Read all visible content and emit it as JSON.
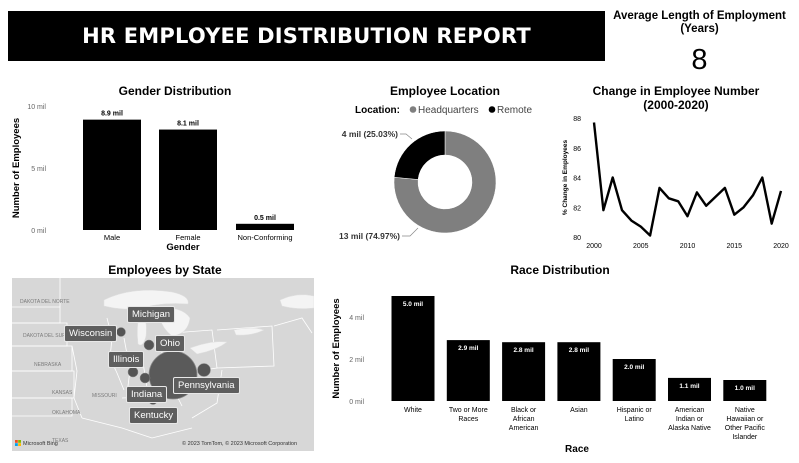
{
  "header": {
    "title": "HR EMPLOYEE DISTRIBUTION REPORT"
  },
  "kpi": {
    "label": "Average Length of Employment\n(Years)",
    "value": "8"
  },
  "colors": {
    "bar": "#000000",
    "donut_hq": "#7f7f7f",
    "donut_remote": "#000000",
    "line": "#000000",
    "bubble": "#555555",
    "map_bg": "#d7d7d7"
  },
  "panels": {
    "gender": "Gender Distribution",
    "location": "Employee Location",
    "trend": "Change in Employee Number\n(2000-2020)",
    "state": "Employees by State",
    "race": "Race Distribution"
  },
  "chart_data": [
    {
      "id": "gender",
      "type": "bar",
      "title": "Gender Distribution",
      "xlabel": "Gender",
      "ylabel": "Number of Employees",
      "categories": [
        "Male",
        "Female",
        "Non-Conforming"
      ],
      "values": [
        8.9,
        8.1,
        0.5
      ],
      "data_labels": [
        "8.9 mil",
        "8.1 mil",
        "0.5 mil"
      ],
      "ylim": [
        0,
        10
      ],
      "yticks": [
        0,
        5,
        10
      ],
      "ytick_labels": [
        "0 mil",
        "5 mil",
        "10 mil"
      ]
    },
    {
      "id": "location",
      "type": "pie",
      "title": "Employee Location",
      "legend_title": "Location:",
      "labels": [
        "Headquarters",
        "Remote"
      ],
      "values": [
        13,
        4
      ],
      "percents": [
        74.97,
        25.03
      ],
      "data_labels": [
        "13 mil (74.97%)",
        "4 mil (25.03%)"
      ],
      "donut": true
    },
    {
      "id": "trend",
      "type": "line",
      "title": "Change in Employee Number (2000-2020)",
      "ylabel": "% Change in Employees",
      "x": [
        2000,
        2001,
        2002,
        2003,
        2004,
        2005,
        2006,
        2007,
        2008,
        2009,
        2010,
        2011,
        2012,
        2013,
        2014,
        2015,
        2016,
        2017,
        2018,
        2019,
        2020
      ],
      "y": [
        87.7,
        81.8,
        84.0,
        81.8,
        81.1,
        80.7,
        80.1,
        83.3,
        82.6,
        82.4,
        81.4,
        83.0,
        82.1,
        82.7,
        83.3,
        81.5,
        82.0,
        82.8,
        84.0,
        80.9,
        83.1
      ],
      "xlim": [
        2000,
        2020
      ],
      "ylim": [
        80,
        88
      ],
      "xticks": [
        2000,
        2005,
        2010,
        2015,
        2020
      ],
      "yticks": [
        80,
        82,
        84,
        86,
        88
      ]
    },
    {
      "id": "race",
      "type": "bar",
      "title": "Race Distribution",
      "xlabel": "Race",
      "ylabel": "Number of Employees",
      "categories": [
        "White",
        "Two or More Races",
        "Black or African American",
        "Asian",
        "Hispanic or Latino",
        "American Indian or Alaska Native",
        "Native Hawaiian or Other Pacific Islander"
      ],
      "category_lines": [
        [
          "White"
        ],
        [
          "Two or More",
          "Races"
        ],
        [
          "Black or",
          "African",
          "American"
        ],
        [
          "Asian"
        ],
        [
          "Hispanic or",
          "Latino"
        ],
        [
          "American",
          "Indian or",
          "Alaska Native"
        ],
        [
          "Native",
          "Hawaiian or",
          "Other Pacific",
          "Islander"
        ]
      ],
      "values": [
        5.0,
        2.9,
        2.8,
        2.8,
        2.0,
        1.1,
        1.0
      ],
      "data_labels": [
        "5.0 mil",
        "2.9 mil",
        "2.8 mil",
        "2.8 mil",
        "2.0 mil",
        "1.1 mil",
        "1.0 mil"
      ],
      "ylim": [
        0,
        5
      ],
      "yticks": [
        0,
        2,
        4
      ],
      "ytick_labels": [
        "0 mil",
        "2 mil",
        "4 mil"
      ]
    }
  ],
  "map": {
    "title": "Employees by State",
    "states": [
      "Michigan",
      "Wisconsin",
      "Ohio",
      "Illinois",
      "Pennsylvania",
      "Indiana",
      "Kentucky"
    ],
    "bubble_sizes": {
      "Ohio": "large",
      "Pennsylvania": "medium",
      "Michigan": "small",
      "Wisconsin": "small",
      "Illinois": "small",
      "Indiana": "small",
      "Kentucky": "small"
    },
    "region_labels": [
      "DAKOTA DEL NORTE",
      "DAKOTA DEL SUR",
      "NEBRASKA",
      "KANSAS",
      "OKLAHOMA",
      "MISSOURI",
      "TEXAS"
    ],
    "credit_left": "Microsoft Bing",
    "credit_right": "© 2023 TomTom, © 2023 Microsoft Corporation"
  }
}
